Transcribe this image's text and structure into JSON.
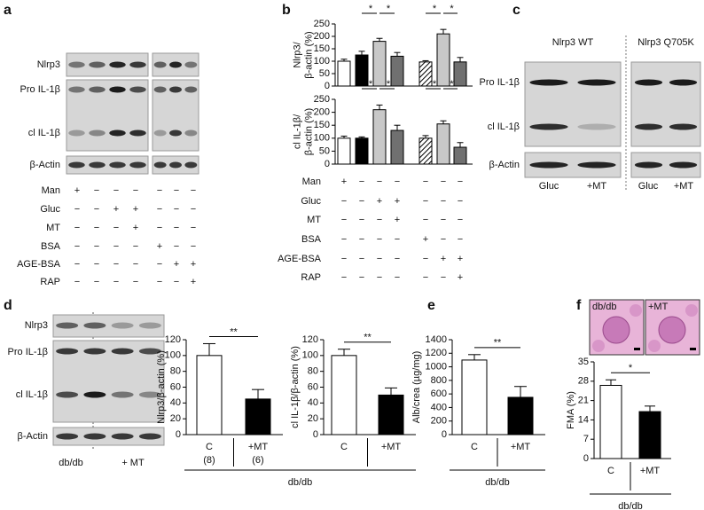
{
  "panels": {
    "a": {
      "letter": "a",
      "blot_labels": [
        "Nlrp3",
        "Pro IL-1β",
        "cl IL-1β",
        "β-Actin"
      ],
      "conditions": [
        {
          "name": "Man",
          "signs": [
            "+",
            "−",
            "−",
            "−",
            "−",
            "−",
            "−"
          ]
        },
        {
          "name": "Gluc",
          "signs": [
            "−",
            "−",
            "+",
            "+",
            "−",
            "−",
            "−"
          ]
        },
        {
          "name": "MT",
          "signs": [
            "−",
            "−",
            "−",
            "+",
            "−",
            "−",
            "−"
          ]
        },
        {
          "name": "BSA",
          "signs": [
            "−",
            "−",
            "−",
            "−",
            "+",
            "−",
            "−"
          ]
        },
        {
          "name": "AGE-BSA",
          "signs": [
            "−",
            "−",
            "−",
            "−",
            "−",
            "+",
            "+"
          ]
        },
        {
          "name": "RAP",
          "signs": [
            "−",
            "−",
            "−",
            "−",
            "−",
            "−",
            "+"
          ]
        }
      ]
    },
    "b": {
      "letter": "b",
      "conditions": [
        {
          "name": "Man",
          "signs": [
            "+",
            "−",
            "−",
            "−",
            "−",
            "−",
            "−"
          ]
        },
        {
          "name": "Gluc",
          "signs": [
            "−",
            "−",
            "+",
            "+",
            "−",
            "−",
            "−"
          ]
        },
        {
          "name": "MT",
          "signs": [
            "−",
            "−",
            "−",
            "+",
            "−",
            "−",
            "−"
          ]
        },
        {
          "name": "BSA",
          "signs": [
            "−",
            "−",
            "−",
            "−",
            "+",
            "−",
            "−"
          ]
        },
        {
          "name": "AGE-BSA",
          "signs": [
            "−",
            "−",
            "−",
            "−",
            "−",
            "+",
            "+"
          ]
        },
        {
          "name": "RAP",
          "signs": [
            "−",
            "−",
            "−",
            "−",
            "−",
            "−",
            "+"
          ]
        }
      ]
    },
    "c": {
      "letter": "c",
      "groups": [
        "Nlrp3 WT",
        "Nlrp3 Q705K"
      ],
      "blot_labels": [
        "Pro IL-1β",
        "cl IL-1β",
        "β-Actin"
      ],
      "lanes": [
        "Gluc",
        "+MT",
        "Gluc",
        "+MT"
      ]
    },
    "d": {
      "letter": "d",
      "blot_labels": [
        "Nlrp3",
        "Pro IL-1β",
        "cl IL-1β",
        "β-Actin"
      ],
      "lanes": [
        "db/db",
        "+ MT"
      ]
    },
    "e": {
      "letter": "e"
    },
    "f": {
      "letter": "f",
      "images": [
        "db/db",
        "+MT"
      ]
    }
  },
  "chart_data": [
    {
      "type": "bar",
      "ylabel": [
        "Nlrp3/",
        "β-actin (%)"
      ],
      "ylim": [
        0,
        250
      ],
      "yticks": [
        0,
        50,
        100,
        150,
        200,
        250
      ],
      "values": [
        100,
        125,
        180,
        120,
        97,
        210,
        97
      ],
      "errors": [
        8,
        15,
        12,
        15,
        5,
        18,
        18
      ],
      "fills": [
        "#ffffff",
        "#000000",
        "#c8c8c8",
        "#707070",
        "hatched",
        "#c8c8c8",
        "#707070"
      ],
      "significance": [
        {
          "label": "*",
          "between": [
            1,
            2
          ]
        },
        {
          "label": "*",
          "between": [
            2,
            3
          ]
        },
        {
          "label": "*",
          "between": [
            4,
            5
          ]
        },
        {
          "label": "*",
          "between": [
            5,
            6
          ]
        }
      ]
    },
    {
      "type": "bar",
      "ylabel": [
        "cl IL-1β/",
        "β-actin (%)"
      ],
      "ylim": [
        0,
        250
      ],
      "yticks": [
        0,
        50,
        100,
        150,
        200,
        250
      ],
      "values": [
        100,
        100,
        210,
        130,
        100,
        155,
        65
      ],
      "errors": [
        8,
        5,
        18,
        20,
        10,
        12,
        18
      ],
      "fills": [
        "#ffffff",
        "#000000",
        "#c8c8c8",
        "#707070",
        "hatched",
        "#c8c8c8",
        "#707070"
      ],
      "significance": [
        {
          "label": "*",
          "between": [
            1,
            2
          ]
        },
        {
          "label": "*",
          "between": [
            2,
            3
          ]
        },
        {
          "label": "*",
          "between": [
            4,
            5
          ]
        },
        {
          "label": "*",
          "between": [
            5,
            6
          ]
        }
      ]
    },
    {
      "type": "bar",
      "ylabel": [
        "Nlrp3/β-actin (%)"
      ],
      "ylim": [
        0,
        120
      ],
      "yticks": [
        0,
        20,
        40,
        60,
        80,
        100,
        120
      ],
      "categories": [
        "C",
        "+MT"
      ],
      "n_labels": [
        "(8)",
        "(6)"
      ],
      "group_label": "db/db",
      "values": [
        100,
        45
      ],
      "errors": [
        15,
        12
      ],
      "fills": [
        "#ffffff",
        "#000000"
      ],
      "significance": [
        {
          "label": "**",
          "between": [
            0,
            1
          ]
        }
      ]
    },
    {
      "type": "bar",
      "ylabel": [
        "cl IL-1β/β-actin (%)"
      ],
      "ylim": [
        0,
        120
      ],
      "yticks": [
        0,
        20,
        40,
        60,
        80,
        100,
        120
      ],
      "categories": [
        "C",
        "+MT"
      ],
      "values": [
        100,
        50
      ],
      "errors": [
        8,
        9
      ],
      "fills": [
        "#ffffff",
        "#000000"
      ],
      "significance": [
        {
          "label": "**",
          "between": [
            0,
            1
          ]
        }
      ]
    },
    {
      "type": "bar",
      "ylabel": [
        "Alb/crea (µg/mg)"
      ],
      "ylim": [
        0,
        1400
      ],
      "yticks": [
        0,
        200,
        400,
        600,
        800,
        1000,
        1200,
        1400
      ],
      "categories": [
        "C",
        "+MT"
      ],
      "group_label": "db/db",
      "values": [
        1100,
        550
      ],
      "errors": [
        80,
        160
      ],
      "fills": [
        "#ffffff",
        "#000000"
      ],
      "significance": [
        {
          "label": "**",
          "between": [
            0,
            1
          ]
        }
      ]
    },
    {
      "type": "bar",
      "ylabel": [
        "FMA (%)"
      ],
      "ylim": [
        0,
        35
      ],
      "yticks": [
        0,
        7,
        14,
        21,
        28,
        35
      ],
      "categories": [
        "C",
        "+MT"
      ],
      "group_label": "db/db",
      "values": [
        26.5,
        17
      ],
      "errors": [
        2,
        2
      ],
      "fills": [
        "#ffffff",
        "#000000"
      ],
      "significance": [
        {
          "label": "*",
          "between": [
            0,
            1
          ]
        }
      ]
    }
  ]
}
